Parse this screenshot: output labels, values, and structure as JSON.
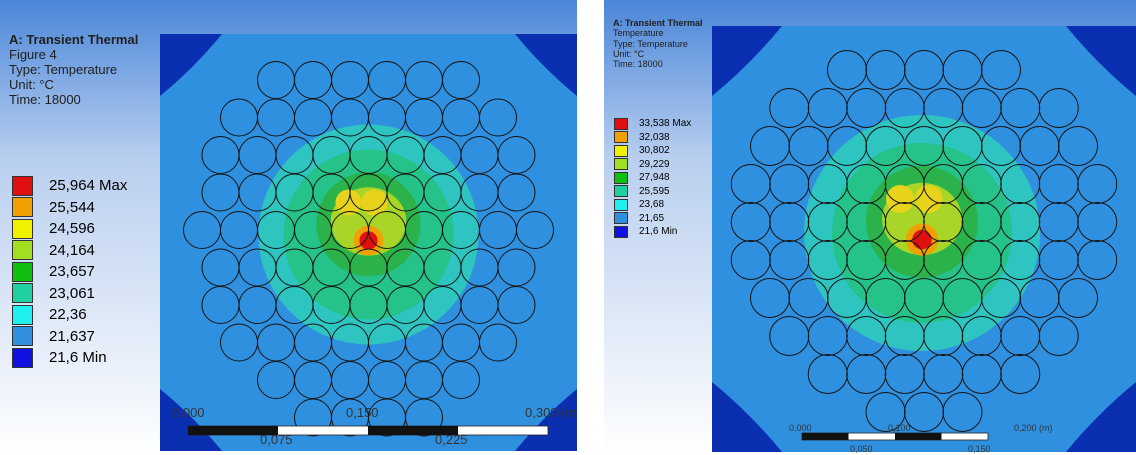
{
  "panels": [
    {
      "title": "A: Transient Thermal",
      "info": [
        "Figure 4",
        "Type: Temperature",
        "Unit: °C",
        "Time: 18000"
      ],
      "legend": [
        {
          "label": "25,964 Max",
          "color": "#e01010"
        },
        {
          "label": "25,544",
          "color": "#f0a000"
        },
        {
          "label": "24,596",
          "color": "#f0f000"
        },
        {
          "label": "24,164",
          "color": "#a0e020"
        },
        {
          "label": "23,657",
          "color": "#10c010"
        },
        {
          "label": "23,061",
          "color": "#20d0a0"
        },
        {
          "label": "22,36",
          "color": "#20f0f0"
        },
        {
          "label": "21,637",
          "color": "#3090e0"
        },
        {
          "label": "21,6 Min",
          "color": "#1010e0"
        }
      ],
      "scale": {
        "top": [
          "0,000",
          "0,150",
          "0,300 (m)"
        ],
        "bottom": [
          "0,075",
          "0,225"
        ]
      }
    },
    {
      "title": "A: Transient Thermal",
      "info": [
        "Temperature",
        "Type: Temperature",
        "Unit: °C",
        "Time: 18000"
      ],
      "legend": [
        {
          "label": "33,538 Max",
          "color": "#e01010"
        },
        {
          "label": "32,038",
          "color": "#f0a000"
        },
        {
          "label": "30,802",
          "color": "#f0f000"
        },
        {
          "label": "29,229",
          "color": "#a0e020"
        },
        {
          "label": "27,948",
          "color": "#10c010"
        },
        {
          "label": "25,595",
          "color": "#20d0a0"
        },
        {
          "label": "23,68",
          "color": "#20f0f0"
        },
        {
          "label": "21,65",
          "color": "#3090e0"
        },
        {
          "label": "21,6 Min",
          "color": "#1010e0"
        }
      ],
      "scale": {
        "top": [
          "0,000",
          "0,100",
          "0,200 (m)"
        ],
        "bottom": [
          "0,050",
          "0,150"
        ]
      }
    }
  ]
}
